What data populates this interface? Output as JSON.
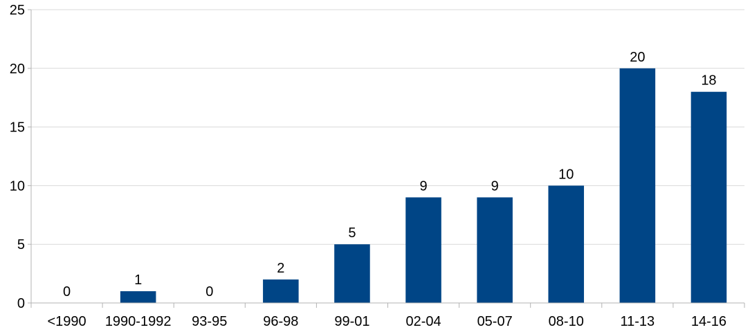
{
  "chart_data": {
    "type": "bar",
    "title": "",
    "xlabel": "",
    "ylabel": "",
    "categories": [
      "<1990",
      "1990-1992",
      "93-95",
      "96-98",
      "99-01",
      "02-04",
      "05-07",
      "08-10",
      "11-13",
      "14-16"
    ],
    "values": [
      0,
      1,
      0,
      2,
      5,
      9,
      9,
      10,
      20,
      18
    ],
    "ylim": [
      0,
      25
    ],
    "yticks": [
      0,
      5,
      10,
      15,
      20,
      25
    ],
    "grid": true,
    "bar_color": "#004586",
    "data_labels": true
  }
}
